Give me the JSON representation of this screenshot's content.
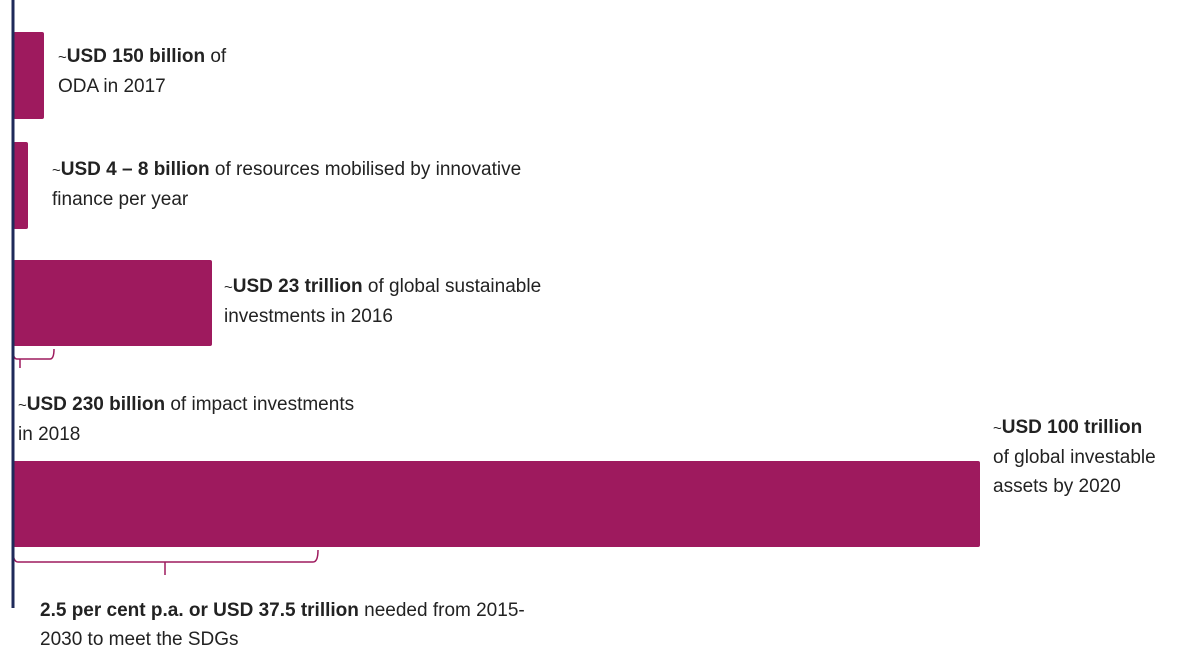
{
  "items": [
    {
      "prefix": "~",
      "bold": "USD 150 billion",
      "text": "of ODA in 2017"
    },
    {
      "prefix": "~",
      "bold": "USD 4 – 8 billion",
      "text": "of resources mobilised by innovative finance per year"
    },
    {
      "prefix": "~",
      "bold": "USD 23 trillion",
      "text": "of global sustainable investments in 2016"
    },
    {
      "prefix": "~",
      "bold": "USD 230 billion",
      "text": "of impact investments in 2018"
    },
    {
      "prefix": "~",
      "bold": "USD 100 trillion",
      "text": "of global investable assets by 2020"
    }
  ],
  "footnote": {
    "bold": "2.5 per cent p.a. or USD 37.5 trillion",
    "text": "needed from 2015-2030 to meet the SDGs"
  }
}
